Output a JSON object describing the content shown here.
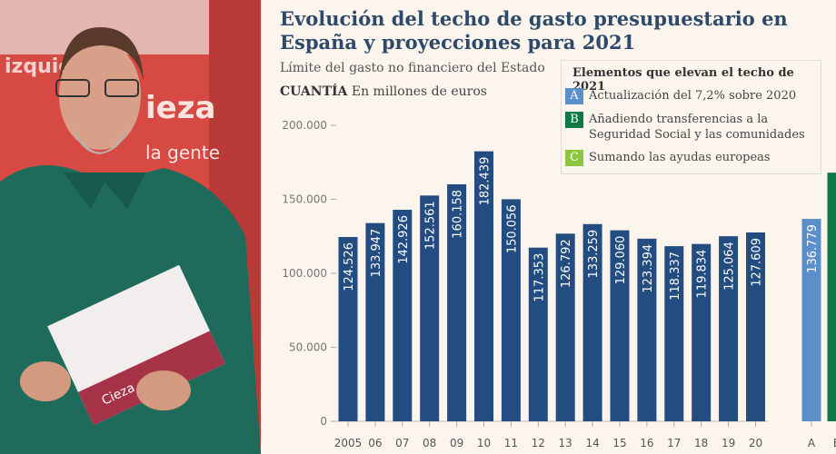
{
  "chart_data": {
    "type": "bar",
    "title": "Evolución del techo de gasto presupuestario en España y proyecciones para 2021",
    "subtitle": "Límite del gasto no financiero del Estado",
    "unit_bold": "CUANTÍA",
    "unit": "En millones de euros",
    "ylim": [
      0,
      200000
    ],
    "yticks": [
      "0",
      "50.000",
      "100.000",
      "150.000",
      "200.000"
    ],
    "categories": [
      "2005",
      "06",
      "07",
      "08",
      "09",
      "10",
      "11",
      "12",
      "13",
      "14",
      "15",
      "16",
      "17",
      "18",
      "19",
      "20"
    ],
    "values": [
      124526,
      133947,
      142926,
      152561,
      160158,
      182439,
      150056,
      117353,
      126792,
      133259,
      129060,
      123394,
      118337,
      119834,
      125064,
      127609
    ],
    "labels": [
      "124.526",
      "133.947",
      "142.926",
      "152.561",
      "160.158",
      "182.439",
      "150.056",
      "117.353",
      "126.792",
      "133.259",
      "129.060",
      "123.394",
      "118.337",
      "119.834",
      "125.064",
      "127.609"
    ],
    "projection": [
      {
        "category": "A",
        "value": 136779,
        "label": "136.779",
        "color": "#5b8fcc"
      },
      {
        "category": "B",
        "value": 168000,
        "label": "",
        "color": "#0d7a45"
      }
    ],
    "bar_color": "#234d80",
    "legend": {
      "title": "Elementos que elevan el techo de 2021",
      "items": [
        {
          "key": "A",
          "text": "Actualización del 7,2% sobre 2020",
          "color": "#5b8fcc"
        },
        {
          "key": "B",
          "text": "Añadiendo transferencias a la Seguridad Social y las comunidades",
          "color": "#0d7a45"
        },
        {
          "key": "C",
          "text": "Sumando las ayudas europeas",
          "color": "#8cc63f"
        }
      ]
    }
  },
  "photo": {
    "sign_text": [
      "izquierda",
      "ieza",
      "la gente",
      "Cieza"
    ]
  }
}
